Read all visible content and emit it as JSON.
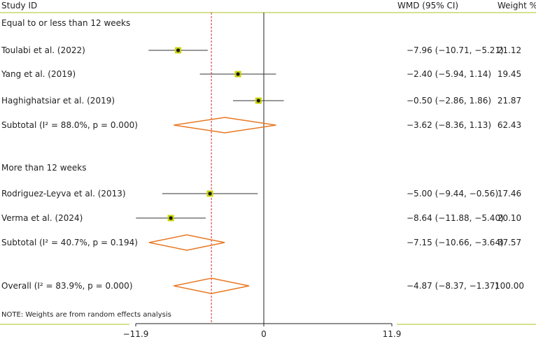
{
  "chart_data": {
    "type": "forest",
    "header": {
      "study": "Study ID",
      "effect": "WMD (95% CI)",
      "weight": "Weight %"
    },
    "xlim": [
      -11.9,
      11.9
    ],
    "xticks": [
      "−11.9",
      "0",
      "11.9"
    ],
    "reference_line": 0,
    "overall_line": -4.87,
    "groups": [
      {
        "title": "Equal to or less than 12 weeks",
        "studies": [
          {
            "label": "Toulabi et al. (2022)",
            "est": -7.96,
            "lo": -10.71,
            "hi": -5.21,
            "ci_text": "−7.96 (−10.71, −5.21)",
            "weight": "21.12"
          },
          {
            "label": "Yang et al. (2019)",
            "est": -2.4,
            "lo": -5.94,
            "hi": 1.14,
            "ci_text": "−2.40 (−5.94, 1.14)",
            "weight": "19.45"
          },
          {
            "label": "Haghighatsiar et al. (2019)",
            "est": -0.5,
            "lo": -2.86,
            "hi": 1.86,
            "ci_text": "−0.50 (−2.86, 1.86)",
            "weight": "21.87"
          }
        ],
        "subtotal": {
          "label": "Subtotal (I² = 88.0%, p = 0.000)",
          "est": -3.62,
          "lo": -8.36,
          "hi": 1.13,
          "ci_text": "−3.62 (−8.36, 1.13)",
          "weight": "62.43"
        }
      },
      {
        "title": "More than 12 weeks",
        "studies": [
          {
            "label": "Rodriguez-Leyva et al. (2013)",
            "est": -5.0,
            "lo": -9.44,
            "hi": -0.56,
            "ci_text": "−5.00 (−9.44, −0.56)",
            "weight": "17.46"
          },
          {
            "label": "Verma et al. (2024)",
            "est": -8.64,
            "lo": -11.88,
            "hi": -5.4,
            "ci_text": "−8.64 (−11.88, −5.40)",
            "weight": "20.10"
          }
        ],
        "subtotal": {
          "label": "Subtotal (I² = 40.7%, p = 0.194)",
          "est": -7.15,
          "lo": -10.66,
          "hi": -3.64,
          "ci_text": "−7.15 (−10.66, −3.64)",
          "weight": "37.57"
        }
      }
    ],
    "overall": {
      "label": "Overall (I² = 83.9%, p = 0.000)",
      "est": -4.87,
      "lo": -8.37,
      "hi": -1.37,
      "ci_text": "−4.87 (−8.37, −1.37)",
      "weight": "100.00"
    },
    "note": "NOTE: Weights are from random effects analysis",
    "colors": {
      "rule": "#c9d86a",
      "marker_box": "#c8d400",
      "marker_dot": "#1a1a1a",
      "ci_line": "#333333",
      "diamond": "#e87722",
      "overall_line": "#d62728",
      "null_line": "#222222"
    }
  }
}
